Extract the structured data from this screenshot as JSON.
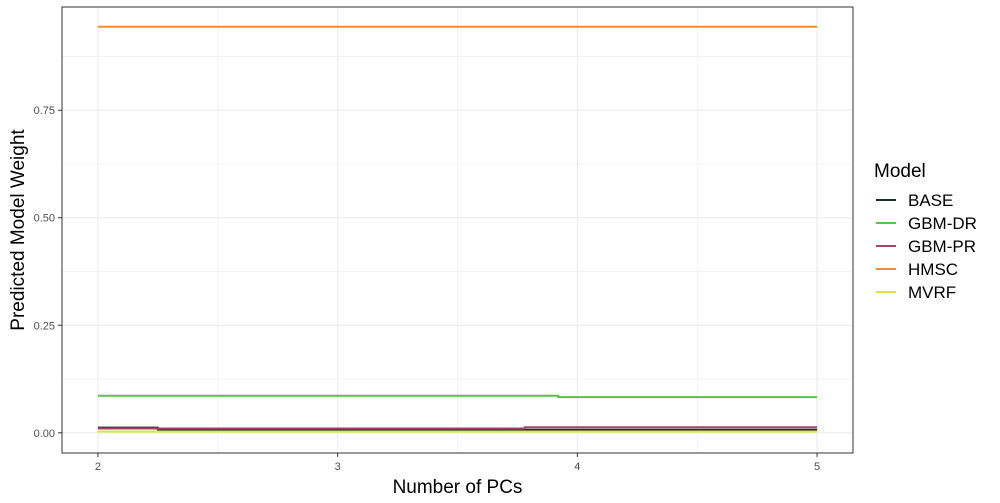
{
  "chart_data": {
    "type": "line",
    "xlabel": "Number of PCs",
    "ylabel": "Predicted Model Weight",
    "xlim": [
      1.85,
      5.15
    ],
    "ylim": [
      -0.047,
      0.99
    ],
    "x_ticks": [
      2,
      3,
      4,
      5
    ],
    "x_tick_labels": [
      "2",
      "3",
      "4",
      "5"
    ],
    "y_ticks": [
      0.0,
      0.25,
      0.5,
      0.75
    ],
    "y_tick_labels": [
      "0.00",
      "0.25",
      "0.50",
      "0.75"
    ],
    "grid": true,
    "legend": {
      "title": "Model",
      "position": "right"
    },
    "series": [
      {
        "name": "BASE",
        "color": "#1a2a33",
        "x": [
          2,
          2.25,
          2.25,
          5
        ],
        "y": [
          0.012,
          0.012,
          0.007,
          0.007
        ]
      },
      {
        "name": "GBM-DR",
        "color": "#5bbf4b",
        "x": [
          2,
          3.92,
          3.92,
          5
        ],
        "y": [
          0.086,
          0.086,
          0.083,
          0.083
        ]
      },
      {
        "name": "GBM-PR",
        "color": "#a8416a",
        "x": [
          2,
          3.78,
          3.78,
          5
        ],
        "y": [
          0.01,
          0.01,
          0.013,
          0.013
        ]
      },
      {
        "name": "HMSC",
        "color": "#f08a3c",
        "x": [
          2,
          5
        ],
        "y": [
          0.944,
          0.944
        ]
      },
      {
        "name": "MVRF",
        "color": "#e3e33a",
        "x": [
          2,
          5
        ],
        "y": [
          0.003,
          0.003
        ]
      }
    ]
  }
}
